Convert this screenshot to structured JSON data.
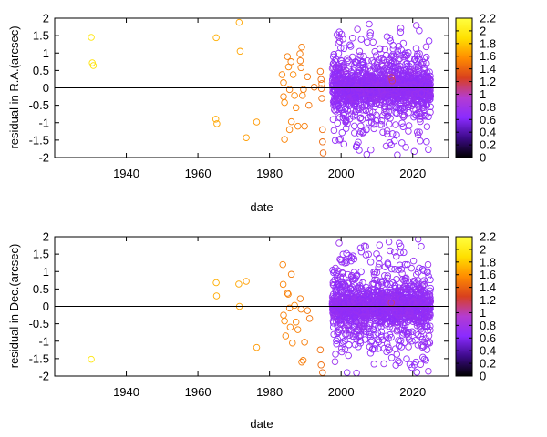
{
  "chart_data": [
    {
      "type": "scatter",
      "id": "ra",
      "title": "",
      "xlabel": "date",
      "ylabel": "residual in R.A.(arcsec)",
      "xlim": [
        1920,
        2030
      ],
      "ylim": [
        -2,
        2
      ],
      "xticks": [
        1940,
        1960,
        1980,
        2000,
        2020
      ],
      "yticks": [
        -2,
        -1.5,
        -1,
        -0.5,
        0,
        0.5,
        1,
        1.5,
        2
      ],
      "colorbar": {
        "min": 0,
        "max": 2.2,
        "ticks": [
          0,
          0.2,
          0.4,
          0.6,
          0.8,
          1,
          1.2,
          1.4,
          1.6,
          1.8,
          2,
          2.2
        ],
        "palette": [
          "#000000",
          "#3d0a8a",
          "#8a2bff",
          "#b43cd2",
          "#d8401e",
          "#ff8c00",
          "#ffe000",
          "#ffff40"
        ]
      },
      "series_sparse": [
        [
          1930.2,
          1.45,
          1.95
        ],
        [
          1930.5,
          0.72,
          1.9
        ],
        [
          1930.8,
          0.64,
          1.92
        ],
        [
          1965.1,
          1.44,
          1.7
        ],
        [
          1965.0,
          -0.9,
          1.68
        ],
        [
          1965.3,
          -1.03,
          1.66
        ],
        [
          1971.5,
          1.88,
          1.67
        ],
        [
          1971.8,
          1.05,
          1.66
        ],
        [
          1973.5,
          -1.43,
          1.63
        ],
        [
          1976.4,
          -0.98,
          1.62
        ],
        [
          1983.5,
          0.38,
          1.52
        ],
        [
          1983.9,
          0.15,
          1.53
        ],
        [
          1983.9,
          -0.25,
          1.51
        ],
        [
          1984.2,
          -0.42,
          1.55
        ],
        [
          1984.2,
          -1.48,
          1.53
        ],
        [
          1985.0,
          0.9,
          1.5
        ],
        [
          1985.3,
          0.6,
          1.53
        ],
        [
          1985.6,
          -0.05,
          1.5
        ],
        [
          1985.6,
          -1.2,
          1.52
        ],
        [
          1986.0,
          0.75,
          1.5
        ],
        [
          1986.1,
          -0.97,
          1.52
        ],
        [
          1986.6,
          0.38,
          1.55
        ],
        [
          1987.0,
          -0.22,
          1.54
        ],
        [
          1987.4,
          -0.57,
          1.52
        ],
        [
          1987.9,
          -1.1,
          1.52
        ],
        [
          1988.5,
          0.98,
          1.49
        ],
        [
          1988.6,
          0.78,
          1.48
        ],
        [
          1988.8,
          0.58,
          1.5
        ],
        [
          1989.0,
          1.17,
          1.5
        ],
        [
          1989.2,
          -0.22,
          1.51
        ],
        [
          1989.5,
          -0.05,
          1.5
        ],
        [
          1989.8,
          -1.1,
          1.5
        ],
        [
          1990.6,
          0.32,
          1.48
        ],
        [
          1991.0,
          -0.5,
          1.47
        ],
        [
          1992.5,
          0.02,
          1.46
        ],
        [
          1994.2,
          0.47,
          1.45
        ],
        [
          1994.4,
          0.24,
          1.44
        ],
        [
          1994.5,
          -0.02,
          1.44
        ],
        [
          1994.6,
          -0.3,
          1.45
        ],
        [
          1994.8,
          -1.2,
          1.44
        ],
        [
          1994.8,
          -1.55,
          1.43
        ],
        [
          1995.0,
          -1.87,
          1.42
        ],
        [
          1994.6,
          0.12,
          1.46
        ],
        [
          2014.0,
          0.3,
          1.12
        ],
        [
          2014.3,
          0.2,
          1.13
        ]
      ],
      "dense": {
        "x_from": 1997.5,
        "x_to": 2025,
        "spread": 0.75,
        "outliers": 110,
        "count": 1400,
        "color_value": 0.7,
        "seed": 11
      }
    },
    {
      "type": "scatter",
      "id": "dec",
      "title": "",
      "xlabel": "date",
      "ylabel": "residual in Dec.(arcsec)",
      "xlim": [
        1920,
        2030
      ],
      "ylim": [
        -2,
        2
      ],
      "xticks": [
        1940,
        1960,
        1980,
        2000,
        2020
      ],
      "yticks": [
        -2,
        -1.5,
        -1,
        -0.5,
        0,
        0.5,
        1,
        1.5,
        2
      ],
      "colorbar": {
        "min": 0,
        "max": 2.2,
        "ticks": [
          0,
          0.2,
          0.4,
          0.6,
          0.8,
          1,
          1.2,
          1.4,
          1.6,
          1.8,
          2,
          2.2
        ],
        "palette": [
          "#000000",
          "#3d0a8a",
          "#8a2bff",
          "#b43cd2",
          "#d8401e",
          "#ff8c00",
          "#ffe000",
          "#ffff40"
        ]
      },
      "series_sparse": [
        [
          1930.2,
          -1.52,
          1.95
        ],
        [
          1965.1,
          0.68,
          1.7
        ],
        [
          1965.2,
          0.3,
          1.68
        ],
        [
          1971.4,
          0.64,
          1.67
        ],
        [
          1971.6,
          0.0,
          1.66
        ],
        [
          1973.5,
          0.72,
          1.63
        ],
        [
          1976.4,
          -1.18,
          1.62
        ],
        [
          1983.7,
          1.2,
          1.52
        ],
        [
          1983.8,
          0.63,
          1.53
        ],
        [
          1983.9,
          -0.25,
          1.51
        ],
        [
          1984.2,
          -0.42,
          1.55
        ],
        [
          1984.5,
          -0.85,
          1.53
        ],
        [
          1985.0,
          0.38,
          1.5
        ],
        [
          1985.2,
          0.35,
          1.52
        ],
        [
          1985.6,
          -0.05,
          1.5
        ],
        [
          1985.8,
          -0.6,
          1.52
        ],
        [
          1986.1,
          0.92,
          1.5
        ],
        [
          1986.4,
          -1.05,
          1.52
        ],
        [
          1987.0,
          0.03,
          1.54
        ],
        [
          1987.4,
          -0.45,
          1.52
        ],
        [
          1987.9,
          -0.67,
          1.52
        ],
        [
          1988.6,
          0.22,
          1.49
        ],
        [
          1988.8,
          -0.08,
          1.5
        ],
        [
          1989.0,
          -1.6,
          1.5
        ],
        [
          1989.4,
          -1.55,
          1.5
        ],
        [
          1989.8,
          -1.03,
          1.5
        ],
        [
          1990.6,
          -0.12,
          1.48
        ],
        [
          1991.2,
          -0.35,
          1.47
        ],
        [
          1994.2,
          -1.25,
          1.45
        ],
        [
          1994.4,
          -1.68,
          1.44
        ],
        [
          1994.8,
          -1.9,
          1.43
        ],
        [
          2014.0,
          0.1,
          1.12
        ]
      ],
      "dense": {
        "x_from": 1997.5,
        "x_to": 2025,
        "spread": 0.8,
        "outliers": 120,
        "count": 1400,
        "color_value": 0.7,
        "seed": 23
      }
    }
  ]
}
